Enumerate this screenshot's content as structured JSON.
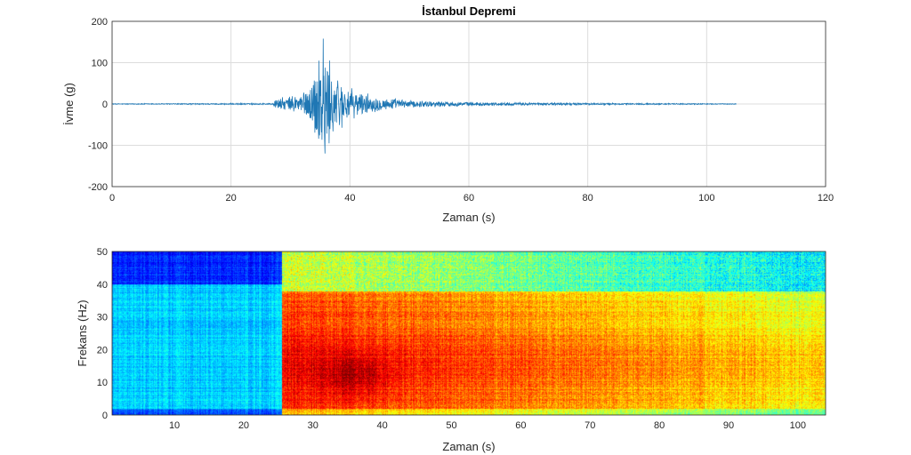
{
  "chart_data": [
    {
      "type": "line",
      "title": "İstanbul Depremi",
      "xlabel": "Zaman (s)",
      "ylabel": "İvme (g)",
      "xlim": [
        0,
        120
      ],
      "ylim": [
        -200,
        200
      ],
      "xticks": [
        0,
        20,
        40,
        60,
        80,
        100,
        120
      ],
      "yticks": [
        -200,
        -100,
        0,
        100,
        200
      ],
      "grid": true,
      "color": "#1f77b4",
      "signal": {
        "start": 0,
        "end": 105,
        "onset": 27,
        "peak_time": 35.5,
        "peak_max": 158,
        "peak_min": -120
      },
      "envelope": [
        {
          "t": 0,
          "a": 1
        },
        {
          "t": 27,
          "a": 2
        },
        {
          "t": 27.5,
          "a": 14
        },
        {
          "t": 30,
          "a": 20
        },
        {
          "t": 33,
          "a": 40
        },
        {
          "t": 35.5,
          "a": 155
        },
        {
          "t": 37,
          "a": 90
        },
        {
          "t": 40,
          "a": 40
        },
        {
          "t": 45,
          "a": 18
        },
        {
          "t": 50,
          "a": 10
        },
        {
          "t": 60,
          "a": 5
        },
        {
          "t": 80,
          "a": 2.5
        },
        {
          "t": 105,
          "a": 1
        }
      ]
    },
    {
      "type": "heatmap",
      "xlabel": "Zaman (s)",
      "ylabel": "Frekans (Hz)",
      "xlim": [
        1,
        104
      ],
      "ylim": [
        0,
        50
      ],
      "xticks": [
        10,
        20,
        30,
        40,
        50,
        60,
        70,
        80,
        90,
        100
      ],
      "yticks": [
        0,
        10,
        20,
        30,
        40,
        50
      ],
      "colormap": "jet",
      "onset": 25.5
    }
  ]
}
